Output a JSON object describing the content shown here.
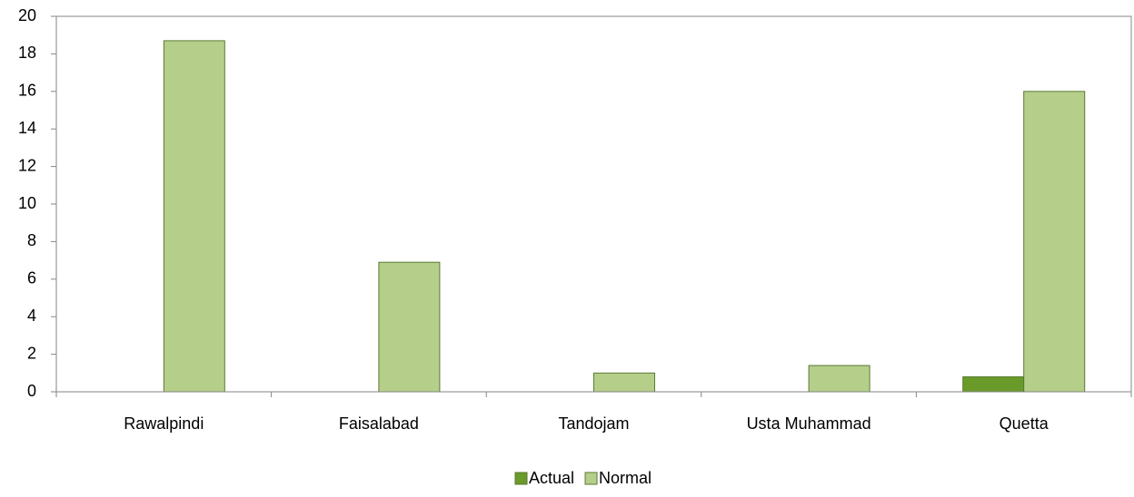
{
  "chart_data": {
    "type": "bar",
    "categories": [
      "Rawalpindi",
      "Faisalabad",
      "Tandojam",
      "Usta Muhammad",
      "Quetta"
    ],
    "series": [
      {
        "name": "Actual",
        "color": "#6a9a2a",
        "values": [
          0,
          0,
          0,
          0,
          0.8
        ]
      },
      {
        "name": "Normal",
        "color": "#b5cf8a",
        "values": [
          18.7,
          6.9,
          1.0,
          1.4,
          16.0
        ]
      }
    ],
    "ylim": [
      0,
      20
    ],
    "yticks": [
      0,
      2,
      4,
      6,
      8,
      10,
      12,
      14,
      16,
      18,
      20
    ],
    "legend": "bottom"
  }
}
